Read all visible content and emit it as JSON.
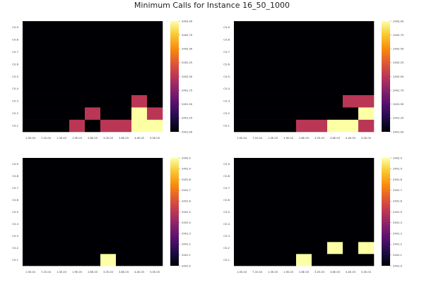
{
  "title": "Minimum Calls for Instance 16_50_1000",
  "chart_data": [
    {
      "type": "heatmap",
      "x": [
        "1.0E-04",
        "7.1E-04",
        "1.3E-03",
        "1.9E-03",
        "2.6E-03",
        "3.2E-03",
        "3.8E-03",
        "4.4E-03",
        "5.0E-03"
      ],
      "y": [
        "C0.1",
        "C0.2",
        "C0.3",
        "C0.4",
        "C0.5",
        "C0.6",
        "C0.7",
        "C0.8",
        "C0.9"
      ],
      "clim": [
        2401.0,
        2403.0
      ],
      "colorbar_ticks": [
        "2401.00",
        "2401.25",
        "2401.50",
        "2401.75",
        "2402.00",
        "2402.25",
        "2402.50",
        "2402.75",
        "2403.00"
      ],
      "colormap": "inferno",
      "z": [
        [
          2401,
          2401,
          2401,
          2402,
          2401,
          2402,
          2402,
          2403,
          2403
        ],
        [
          2401,
          2401,
          2401,
          2401,
          2402,
          2401,
          2401,
          2403,
          2402
        ],
        [
          2401,
          2401,
          2401,
          2401,
          2401,
          2401,
          2401,
          2402,
          2401
        ],
        [
          2401,
          2401,
          2401,
          2401,
          2401,
          2401,
          2401,
          2401,
          2401
        ],
        [
          2401,
          2401,
          2401,
          2401,
          2401,
          2401,
          2401,
          2401,
          2401
        ],
        [
          2401,
          2401,
          2401,
          2401,
          2401,
          2401,
          2401,
          2401,
          2401
        ],
        [
          2401,
          2401,
          2401,
          2401,
          2401,
          2401,
          2401,
          2401,
          2401
        ],
        [
          2401,
          2401,
          2401,
          2401,
          2401,
          2401,
          2401,
          2401,
          2401
        ],
        [
          2401,
          2401,
          2401,
          2401,
          2401,
          2401,
          2401,
          2401,
          2401
        ]
      ]
    },
    {
      "type": "heatmap",
      "x": [
        "1.0E-04",
        "7.1E-04",
        "1.3E-03",
        "1.9E-03",
        "2.6E-03",
        "3.2E-03",
        "3.8E-03",
        "4.4E-03",
        "5.0E-03"
      ],
      "y": [
        "C0.1",
        "C0.2",
        "C0.3",
        "C0.4",
        "C0.5",
        "C0.6",
        "C0.7",
        "C0.8",
        "C0.9"
      ],
      "clim": [
        2401.0,
        2403.0
      ],
      "colorbar_ticks": [
        "2401.00",
        "2401.25",
        "2401.50",
        "2401.75",
        "2402.00",
        "2402.25",
        "2402.50",
        "2402.75",
        "2403.00"
      ],
      "colormap": "inferno",
      "z": [
        [
          2401,
          2401,
          2401,
          2401,
          2402,
          2402,
          2403,
          2403,
          2402
        ],
        [
          2401,
          2401,
          2401,
          2401,
          2401,
          2401,
          2401,
          2401,
          2403
        ],
        [
          2401,
          2401,
          2401,
          2401,
          2401,
          2401,
          2401,
          2402,
          2402
        ],
        [
          2401,
          2401,
          2401,
          2401,
          2401,
          2401,
          2401,
          2401,
          2401
        ],
        [
          2401,
          2401,
          2401,
          2401,
          2401,
          2401,
          2401,
          2401,
          2401
        ],
        [
          2401,
          2401,
          2401,
          2401,
          2401,
          2401,
          2401,
          2401,
          2401
        ],
        [
          2401,
          2401,
          2401,
          2401,
          2401,
          2401,
          2401,
          2401,
          2401
        ],
        [
          2401,
          2401,
          2401,
          2401,
          2401,
          2401,
          2401,
          2401,
          2401
        ],
        [
          2401,
          2401,
          2401,
          2401,
          2401,
          2401,
          2401,
          2401,
          2401
        ]
      ]
    },
    {
      "type": "heatmap",
      "x": [
        "1.0E-04",
        "7.1E-04",
        "1.3E-03",
        "1.9E-03",
        "2.6E-03",
        "3.2E-03",
        "3.8E-03",
        "4.4E-03",
        "5.0E-03"
      ],
      "y": [
        "C0.1",
        "C0.2",
        "C0.3",
        "C0.4",
        "C0.5",
        "C0.6",
        "C0.7",
        "C0.8",
        "C0.9"
      ],
      "clim": [
        2401.0,
        2402.0
      ],
      "colorbar_ticks": [
        "2401.0",
        "2401.1",
        "2401.2",
        "2401.3",
        "2401.4",
        "2401.5",
        "2401.6",
        "2401.7",
        "2401.8",
        "2401.9",
        "2402.0"
      ],
      "colormap": "inferno",
      "z": [
        [
          2401,
          2401,
          2401,
          2401,
          2401,
          2402,
          2401,
          2401,
          2401
        ],
        [
          2401,
          2401,
          2401,
          2401,
          2401,
          2401,
          2401,
          2401,
          2401
        ],
        [
          2401,
          2401,
          2401,
          2401,
          2401,
          2401,
          2401,
          2401,
          2401
        ],
        [
          2401,
          2401,
          2401,
          2401,
          2401,
          2401,
          2401,
          2401,
          2401
        ],
        [
          2401,
          2401,
          2401,
          2401,
          2401,
          2401,
          2401,
          2401,
          2401
        ],
        [
          2401,
          2401,
          2401,
          2401,
          2401,
          2401,
          2401,
          2401,
          2401
        ],
        [
          2401,
          2401,
          2401,
          2401,
          2401,
          2401,
          2401,
          2401,
          2401
        ],
        [
          2401,
          2401,
          2401,
          2401,
          2401,
          2401,
          2401,
          2401,
          2401
        ],
        [
          2401,
          2401,
          2401,
          2401,
          2401,
          2401,
          2401,
          2401,
          2401
        ]
      ]
    },
    {
      "type": "heatmap",
      "x": [
        "1.0E-04",
        "7.1E-04",
        "1.3E-03",
        "1.9E-03",
        "2.6E-03",
        "3.2E-03",
        "3.8E-03",
        "4.4E-03",
        "5.0E-03"
      ],
      "y": [
        "C0.1",
        "C0.2",
        "C0.3",
        "C0.4",
        "C0.5",
        "C0.6",
        "C0.7",
        "C0.8",
        "C0.9"
      ],
      "clim": [
        2401.0,
        2402.0
      ],
      "colorbar_ticks": [
        "2401.0",
        "2401.1",
        "2401.2",
        "2401.3",
        "2401.4",
        "2401.5",
        "2401.6",
        "2401.7",
        "2401.8",
        "2401.9",
        "2402.0"
      ],
      "colormap": "inferno",
      "z": [
        [
          2401,
          2401,
          2401,
          2401,
          2402,
          2401,
          2401,
          2401,
          2401
        ],
        [
          2401,
          2401,
          2401,
          2401,
          2401,
          2401,
          2402,
          2401,
          2402
        ],
        [
          2401,
          2401,
          2401,
          2401,
          2401,
          2401,
          2401,
          2401,
          2401
        ],
        [
          2401,
          2401,
          2401,
          2401,
          2401,
          2401,
          2401,
          2401,
          2401
        ],
        [
          2401,
          2401,
          2401,
          2401,
          2401,
          2401,
          2401,
          2401,
          2401
        ],
        [
          2401,
          2401,
          2401,
          2401,
          2401,
          2401,
          2401,
          2401,
          2401
        ],
        [
          2401,
          2401,
          2401,
          2401,
          2401,
          2401,
          2401,
          2401,
          2401
        ],
        [
          2401,
          2401,
          2401,
          2401,
          2401,
          2401,
          2401,
          2401,
          2401
        ],
        [
          2401,
          2401,
          2401,
          2401,
          2401,
          2401,
          2401,
          2401,
          2401
        ]
      ]
    }
  ]
}
